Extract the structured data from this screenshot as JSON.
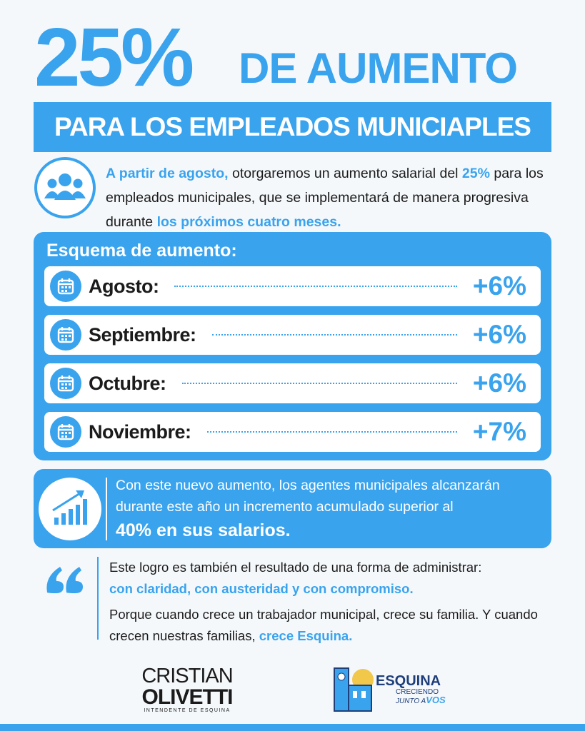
{
  "header": {
    "percent": "25%",
    "title": "DE AUMENTO",
    "subtitle": "PARA LOS EMPLEADOS MUNICIAPLES"
  },
  "intro": {
    "lead": "A partir de agosto,",
    "text1": " otorgaremos un aumento salarial del ",
    "highlight": "25%",
    "text2": " para los empleados municipales, que se implementará de manera progresiva durante ",
    "closing": "los próximos cuatro meses."
  },
  "schedule": {
    "title": "Esquema de aumento:",
    "rows": [
      {
        "month": "Agosto:",
        "increase": "+6%"
      },
      {
        "month": "Septiembre:",
        "increase": "+6%"
      },
      {
        "month": "Octubre:",
        "increase": "+6%"
      },
      {
        "month": "Noviembre:",
        "increase": "+7%"
      }
    ]
  },
  "summary": {
    "text": "Con este nuevo aumento, los agentes municipales alcanzarán durante este año un incremento acumulado superior al",
    "highlight": "40% en sus salarios."
  },
  "quote": {
    "line1": "Este logro es también el resultado de una forma de administrar:",
    "line1_highlight": "con claridad, con austeridad y con compromiso.",
    "line2": "Porque cuando crece un trabajador municipal, crece su familia. Y cuando crecen nuestras familias,",
    "line2_highlight": "crece Esquina."
  },
  "footer": {
    "name_first": "CRISTIAN",
    "name_last": "OLIVETTI",
    "role": "INTENDENTE DE ESQUINA",
    "brand": "ESQUINA",
    "slogan1": "CRECIENDO",
    "slogan2": "JUNTO A",
    "slogan3": "VOS"
  }
}
